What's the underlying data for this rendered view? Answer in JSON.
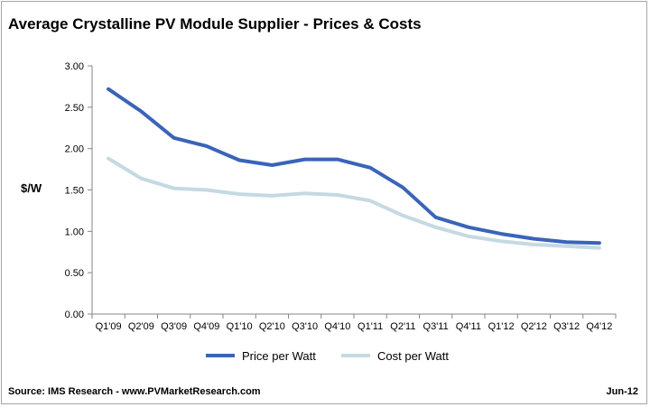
{
  "title": "Average Crystalline PV Module Supplier - Prices & Costs",
  "source": "Source: IMS Research - www.PVMarketResearch.com",
  "date": "Jun-12",
  "chart_data": {
    "type": "line",
    "title": "Average Crystalline PV Module Supplier - Prices & Costs",
    "xlabel": "",
    "ylabel": "$/W",
    "ylim": [
      0,
      3
    ],
    "yticks": [
      "0.00",
      "0.50",
      "1.00",
      "1.50",
      "2.00",
      "2.50",
      "3.00"
    ],
    "grid": false,
    "legend": "bottom",
    "categories": [
      "Q1'09",
      "Q2'09",
      "Q3'09",
      "Q4'09",
      "Q1'10",
      "Q2'10",
      "Q3'10",
      "Q4'10",
      "Q1'11",
      "Q2'11",
      "Q3'11",
      "Q4'11",
      "Q1'12",
      "Q2'12",
      "Q3'12",
      "Q4'12"
    ],
    "series": [
      {
        "name": "Price per Watt",
        "color": "#3a64b8",
        "values": [
          2.72,
          2.45,
          2.13,
          2.03,
          1.86,
          1.8,
          1.87,
          1.87,
          1.77,
          1.53,
          1.17,
          1.05,
          0.97,
          0.91,
          0.87,
          0.86
        ]
      },
      {
        "name": "Cost per Watt",
        "color": "#c5d9e2",
        "values": [
          1.88,
          1.64,
          1.52,
          1.5,
          1.45,
          1.43,
          1.46,
          1.44,
          1.37,
          1.19,
          1.05,
          0.94,
          0.88,
          0.84,
          0.82,
          0.8
        ]
      }
    ]
  }
}
